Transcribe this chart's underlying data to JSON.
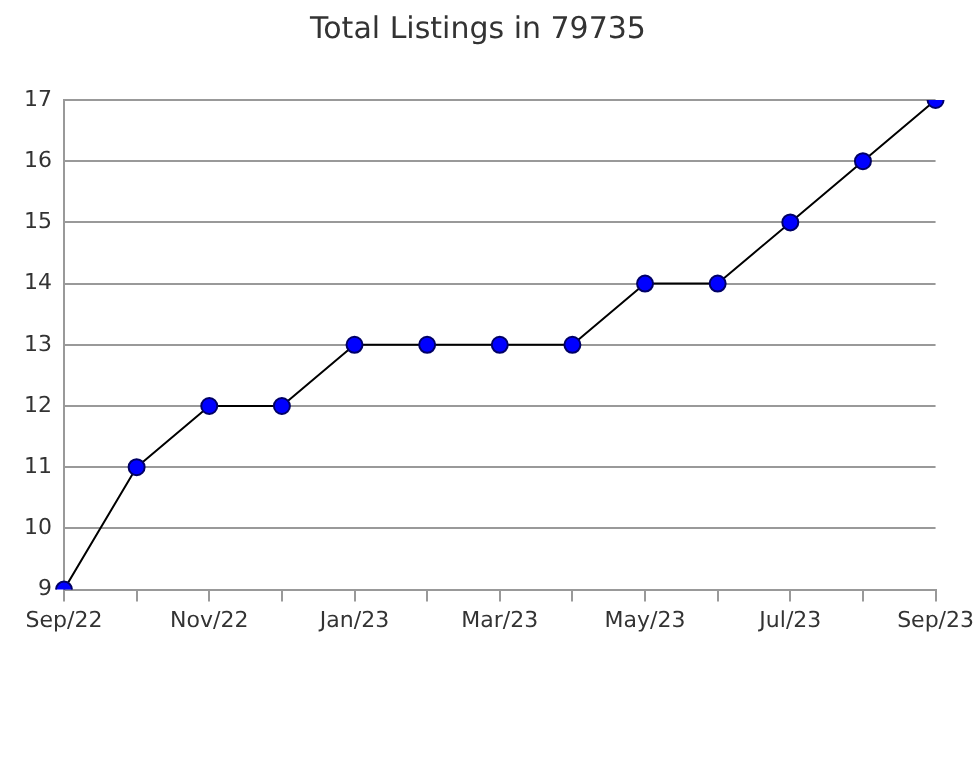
{
  "chart_data": {
    "type": "line",
    "title": "Total Listings in 79735",
    "categories": [
      "Sep/22",
      null,
      "Nov/22",
      null,
      "Jan/23",
      null,
      "Mar/23",
      null,
      "May/23",
      null,
      "Jul/23",
      null,
      "Sep/23"
    ],
    "series": [
      {
        "color": "#0000ff",
        "values": [
          9,
          11,
          12,
          12,
          13,
          13,
          13,
          13,
          14,
          14,
          15,
          16,
          17
        ]
      }
    ],
    "ylim": [
      9,
      17
    ],
    "yticks": [
      9,
      10,
      11,
      12,
      13,
      14,
      15,
      16,
      17
    ],
    "grid": "y",
    "legend": false,
    "marker": "circle",
    "line_style": "solid"
  }
}
